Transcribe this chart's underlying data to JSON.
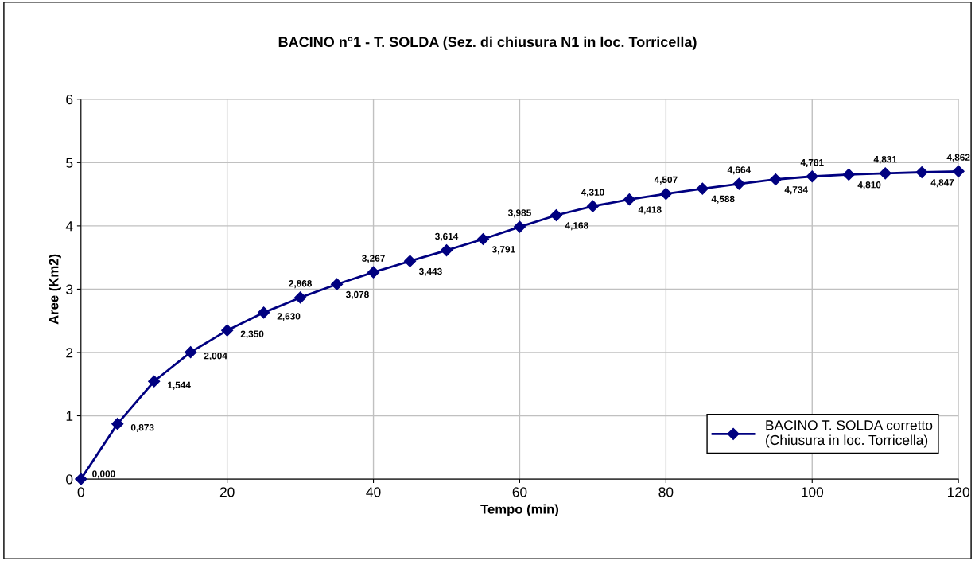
{
  "chart_data": {
    "type": "line",
    "title": "BACINO n°1 - T. SOLDA (Sez. di chiusura N1 in loc. Torricella)",
    "xlabel": "Tempo (min)",
    "ylabel": "Aree (Km2)",
    "x": [
      0,
      5,
      10,
      15,
      20,
      25,
      30,
      35,
      40,
      45,
      50,
      55,
      60,
      65,
      70,
      75,
      80,
      85,
      90,
      95,
      100,
      105,
      110,
      115,
      120
    ],
    "series": [
      {
        "name": "BACINO T. SOLDA corretto\n(Chiusura in loc. Torricella)",
        "color": "#000080",
        "values": [
          0.0,
          0.873,
          1.544,
          2.004,
          2.35,
          2.63,
          2.868,
          3.078,
          3.267,
          3.443,
          3.614,
          3.791,
          3.985,
          4.168,
          4.31,
          4.418,
          4.507,
          4.588,
          4.664,
          4.734,
          4.781,
          4.81,
          4.831,
          4.847,
          4.862
        ],
        "value_labels": [
          "0,000",
          "0,873",
          "1,544",
          "2,004",
          "2,350",
          "2,630",
          "2,868",
          "3,078",
          "3,267",
          "3,443",
          "3,614",
          "3,791",
          "3,985",
          "4,168",
          "4,310",
          "4,418",
          "4,507",
          "4,588",
          "4,664",
          "4,734",
          "4,781",
          "4,810",
          "4,831",
          "4,847",
          "4,862"
        ]
      }
    ],
    "xlim": [
      0,
      120
    ],
    "xticks": [
      0,
      20,
      40,
      60,
      80,
      100,
      120
    ],
    "ylim": [
      0,
      6
    ],
    "yticks": [
      0,
      1,
      2,
      3,
      4,
      5,
      6
    ],
    "grid": true,
    "legend": "bottom right",
    "marker": "diamond",
    "line_style": "solid"
  }
}
